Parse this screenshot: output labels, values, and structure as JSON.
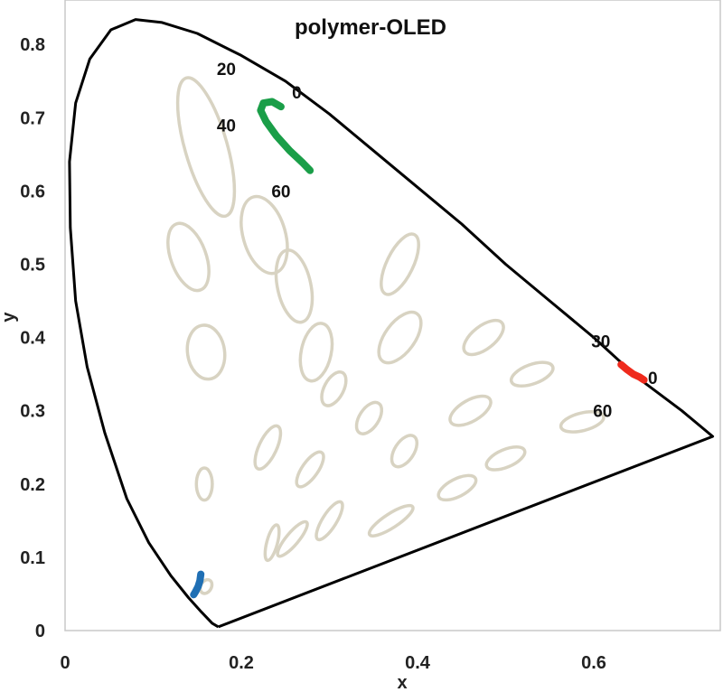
{
  "chart_data": {
    "type": "scatter",
    "title": "polymer-OLED",
    "xlabel": "x",
    "ylabel": "y",
    "xlim": [
      0,
      0.74
    ],
    "ylim": [
      0,
      0.85
    ],
    "x_ticks": [
      {
        "value": 0,
        "label": "0"
      },
      {
        "value": 0.2,
        "label": "0.2"
      },
      {
        "value": 0.4,
        "label": "0.4"
      },
      {
        "value": 0.6,
        "label": "0.6"
      }
    ],
    "y_ticks": [
      {
        "value": 0,
        "label": "0"
      },
      {
        "value": 0.1,
        "label": "0.1"
      },
      {
        "value": 0.2,
        "label": "0.2"
      },
      {
        "value": 0.3,
        "label": "0.3"
      },
      {
        "value": 0.4,
        "label": "0.4"
      },
      {
        "value": 0.5,
        "label": "0.5"
      },
      {
        "value": 0.6,
        "label": "0.6"
      },
      {
        "value": 0.7,
        "label": "0.7"
      },
      {
        "value": 0.8,
        "label": "0.8"
      }
    ],
    "gamut_boundary": [
      [
        0.174,
        0.005
      ],
      [
        0.167,
        0.01
      ],
      [
        0.155,
        0.025
      ],
      [
        0.14,
        0.045
      ],
      [
        0.12,
        0.075
      ],
      [
        0.095,
        0.12
      ],
      [
        0.07,
        0.18
      ],
      [
        0.045,
        0.27
      ],
      [
        0.025,
        0.36
      ],
      [
        0.012,
        0.45
      ],
      [
        0.006,
        0.55
      ],
      [
        0.005,
        0.64
      ],
      [
        0.012,
        0.72
      ],
      [
        0.028,
        0.78
      ],
      [
        0.052,
        0.82
      ],
      [
        0.08,
        0.834
      ],
      [
        0.11,
        0.83
      ],
      [
        0.15,
        0.815
      ],
      [
        0.2,
        0.785
      ],
      [
        0.25,
        0.75
      ],
      [
        0.3,
        0.705
      ],
      [
        0.35,
        0.655
      ],
      [
        0.4,
        0.605
      ],
      [
        0.45,
        0.555
      ],
      [
        0.5,
        0.5
      ],
      [
        0.55,
        0.45
      ],
      [
        0.6,
        0.4
      ],
      [
        0.65,
        0.345
      ],
      [
        0.7,
        0.3
      ],
      [
        0.735,
        0.265
      ],
      [
        0.174,
        0.005
      ]
    ],
    "macadam_ellipses": [
      {
        "x": 0.16,
        "y": 0.66,
        "rx": 0.024,
        "ry": 0.098,
        "angle": -16
      },
      {
        "x": 0.226,
        "y": 0.54,
        "rx": 0.024,
        "ry": 0.054,
        "angle": -16
      },
      {
        "x": 0.14,
        "y": 0.51,
        "rx": 0.02,
        "ry": 0.048,
        "angle": -20
      },
      {
        "x": 0.26,
        "y": 0.47,
        "rx": 0.019,
        "ry": 0.05,
        "angle": -12
      },
      {
        "x": 0.38,
        "y": 0.5,
        "rx": 0.015,
        "ry": 0.045,
        "angle": 26
      },
      {
        "x": 0.16,
        "y": 0.38,
        "rx": 0.021,
        "ry": 0.037,
        "angle": -8
      },
      {
        "x": 0.285,
        "y": 0.38,
        "rx": 0.017,
        "ry": 0.04,
        "angle": 12
      },
      {
        "x": 0.38,
        "y": 0.4,
        "rx": 0.017,
        "ry": 0.04,
        "angle": 36
      },
      {
        "x": 0.475,
        "y": 0.4,
        "rx": 0.013,
        "ry": 0.032,
        "angle": 52
      },
      {
        "x": 0.305,
        "y": 0.33,
        "rx": 0.011,
        "ry": 0.025,
        "angle": 28
      },
      {
        "x": 0.53,
        "y": 0.35,
        "rx": 0.011,
        "ry": 0.03,
        "angle": 70
      },
      {
        "x": 0.345,
        "y": 0.29,
        "rx": 0.011,
        "ry": 0.024,
        "angle": 33
      },
      {
        "x": 0.385,
        "y": 0.245,
        "rx": 0.011,
        "ry": 0.024,
        "angle": 33
      },
      {
        "x": 0.46,
        "y": 0.3,
        "rx": 0.012,
        "ry": 0.031,
        "angle": 60
      },
      {
        "x": 0.587,
        "y": 0.285,
        "rx": 0.01,
        "ry": 0.03,
        "angle": 76
      },
      {
        "x": 0.23,
        "y": 0.25,
        "rx": 0.01,
        "ry": 0.032,
        "angle": 25
      },
      {
        "x": 0.278,
        "y": 0.22,
        "rx": 0.009,
        "ry": 0.028,
        "angle": 35
      },
      {
        "x": 0.158,
        "y": 0.2,
        "rx": 0.009,
        "ry": 0.022,
        "angle": 0
      },
      {
        "x": 0.445,
        "y": 0.195,
        "rx": 0.01,
        "ry": 0.028,
        "angle": 63
      },
      {
        "x": 0.5,
        "y": 0.235,
        "rx": 0.01,
        "ry": 0.028,
        "angle": 67
      },
      {
        "x": 0.3,
        "y": 0.15,
        "rx": 0.008,
        "ry": 0.03,
        "angle": 32
      },
      {
        "x": 0.235,
        "y": 0.12,
        "rx": 0.006,
        "ry": 0.025,
        "angle": 15
      },
      {
        "x": 0.258,
        "y": 0.125,
        "rx": 0.007,
        "ry": 0.03,
        "angle": 40
      },
      {
        "x": 0.37,
        "y": 0.15,
        "rx": 0.008,
        "ry": 0.035,
        "angle": 57
      },
      {
        "x": 0.16,
        "y": 0.06,
        "rx": 0.006,
        "ry": 0.01,
        "angle": 30
      }
    ],
    "series": [
      {
        "color": "#1a9e48",
        "points": [
          [
            0.245,
            0.715
          ],
          [
            0.235,
            0.722
          ],
          [
            0.225,
            0.72
          ],
          [
            0.222,
            0.71
          ],
          [
            0.228,
            0.695
          ],
          [
            0.24,
            0.675
          ],
          [
            0.255,
            0.655
          ],
          [
            0.27,
            0.638
          ],
          [
            0.278,
            0.628
          ]
        ]
      },
      {
        "color": "#ef2a1c",
        "points": [
          [
            0.631,
            0.363
          ],
          [
            0.638,
            0.356
          ],
          [
            0.645,
            0.35
          ],
          [
            0.652,
            0.346
          ],
          [
            0.657,
            0.342
          ]
        ]
      },
      {
        "color": "#1f6fb4",
        "points": [
          [
            0.154,
            0.077
          ],
          [
            0.153,
            0.068
          ],
          [
            0.151,
            0.06
          ],
          [
            0.148,
            0.053
          ],
          [
            0.146,
            0.049
          ]
        ]
      }
    ],
    "annotations": [
      {
        "text": "0",
        "x": 0.263,
        "y": 0.735
      },
      {
        "text": "20",
        "x": 0.183,
        "y": 0.767
      },
      {
        "text": "40",
        "x": 0.183,
        "y": 0.69
      },
      {
        "text": "60",
        "x": 0.245,
        "y": 0.6
      },
      {
        "text": "30",
        "x": 0.608,
        "y": 0.395
      },
      {
        "text": "0",
        "x": 0.667,
        "y": 0.345
      },
      {
        "text": "60",
        "x": 0.61,
        "y": 0.3
      }
    ],
    "colors": {
      "boundary": "#000000",
      "ellipse": "#d8d3c2",
      "frame": "#c8c8c8"
    }
  }
}
